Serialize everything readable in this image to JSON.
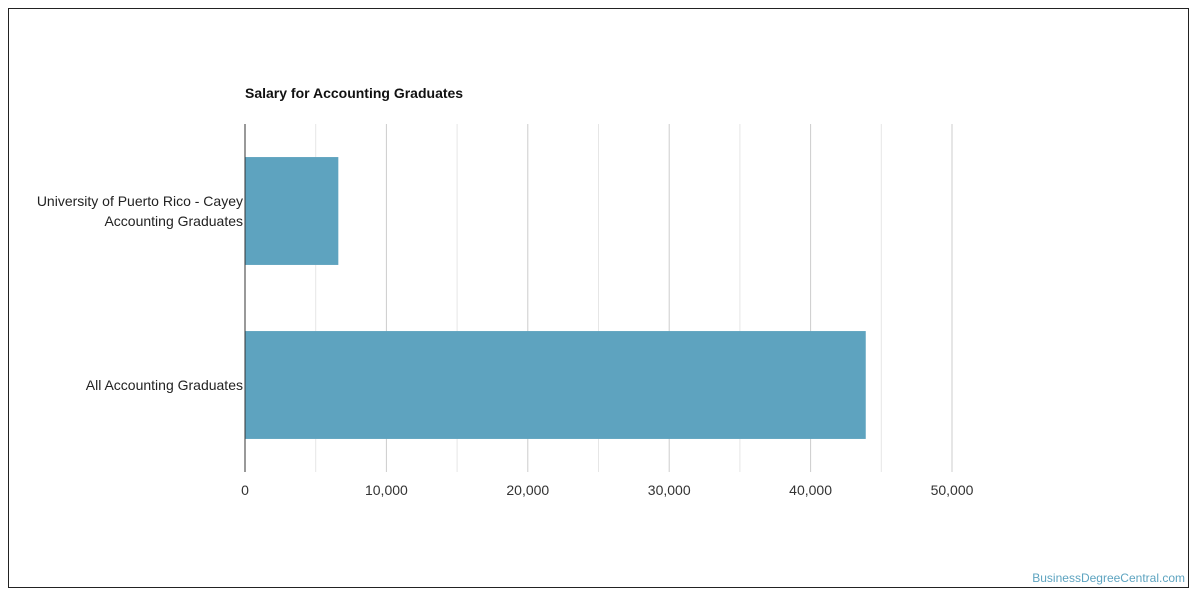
{
  "chart_data": {
    "type": "bar",
    "orientation": "horizontal",
    "title": "Salary for Accounting Graduates",
    "categories": [
      [
        "University of Puerto Rico - Cayey",
        "Accounting Graduates"
      ],
      [
        "All Accounting Graduates"
      ]
    ],
    "values": [
      6600,
      43900
    ],
    "xlim": [
      0,
      50000
    ],
    "xticks": [
      0,
      10000,
      20000,
      30000,
      40000,
      50000
    ],
    "xtick_labels": [
      "0",
      "10,000",
      "20,000",
      "30,000",
      "40,000",
      "50,000"
    ],
    "grid": true,
    "bar_color": "#5ea3bf"
  },
  "watermark": "BusinessDegreeCentral.com"
}
